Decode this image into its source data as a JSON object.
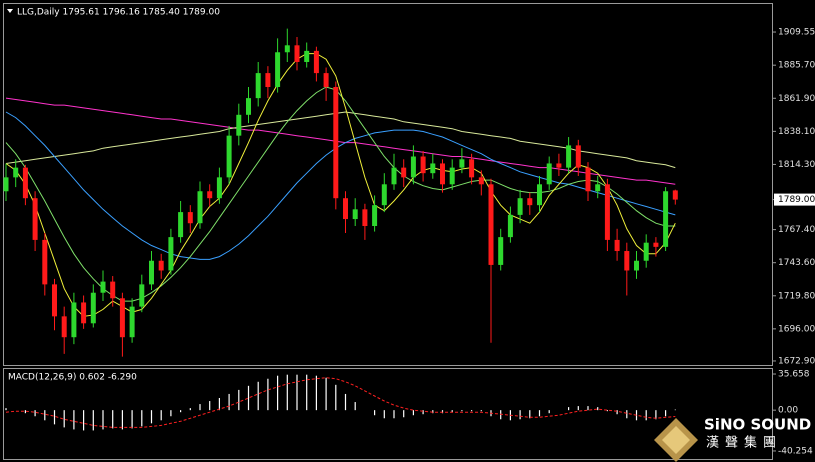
{
  "chart_data": [
    {
      "type": "candlestick",
      "title": "LLG,Daily 1795.61 1796.16 1785.40 1789.00",
      "open": [
        1795,
        1805,
        1812,
        1790,
        1760,
        1728,
        1705,
        1690,
        1715,
        1700,
        1722,
        1730,
        1718,
        1690,
        1712,
        1728,
        1745,
        1738,
        1762,
        1780,
        1772,
        1795,
        1790,
        1805,
        1835,
        1850,
        1862,
        1880,
        1870,
        1895,
        1900,
        1888,
        1896,
        1880,
        1870,
        1790,
        1775,
        1782,
        1770,
        1785,
        1800,
        1812,
        1805,
        1820,
        1808,
        1815,
        1800,
        1812,
        1818,
        1805,
        1800,
        1742,
        1762,
        1778,
        1790,
        1785,
        1800,
        1815,
        1812,
        1828,
        1812,
        1795,
        1800,
        1760,
        1752,
        1738,
        1745,
        1758,
        1755,
        1795.61
      ],
      "high": [
        1815,
        1818,
        1814,
        1795,
        1765,
        1732,
        1712,
        1722,
        1720,
        1728,
        1738,
        1734,
        1722,
        1718,
        1735,
        1752,
        1750,
        1768,
        1788,
        1785,
        1802,
        1800,
        1812,
        1842,
        1858,
        1870,
        1888,
        1885,
        1905,
        1912,
        1906,
        1902,
        1899,
        1884,
        1874,
        1795,
        1790,
        1786,
        1792,
        1808,
        1822,
        1818,
        1828,
        1824,
        1822,
        1818,
        1818,
        1826,
        1822,
        1810,
        1804,
        1768,
        1784,
        1796,
        1794,
        1806,
        1820,
        1822,
        1834,
        1832,
        1816,
        1806,
        1804,
        1768,
        1758,
        1752,
        1764,
        1762,
        1798,
        1796.16
      ],
      "low": [
        1788,
        1798,
        1785,
        1752,
        1720,
        1695,
        1678,
        1685,
        1696,
        1697,
        1716,
        1712,
        1676,
        1686,
        1708,
        1724,
        1732,
        1735,
        1758,
        1765,
        1768,
        1784,
        1786,
        1800,
        1828,
        1844,
        1856,
        1862,
        1866,
        1888,
        1882,
        1884,
        1874,
        1860,
        1782,
        1765,
        1770,
        1760,
        1766,
        1780,
        1796,
        1798,
        1800,
        1802,
        1804,
        1794,
        1796,
        1808,
        1800,
        1792,
        1686,
        1738,
        1758,
        1772,
        1778,
        1780,
        1796,
        1806,
        1808,
        1806,
        1788,
        1790,
        1752,
        1745,
        1720,
        1732,
        1740,
        1748,
        1752,
        1785.4
      ],
      "close": [
        1805,
        1812,
        1790,
        1760,
        1728,
        1705,
        1690,
        1715,
        1700,
        1722,
        1730,
        1718,
        1690,
        1712,
        1728,
        1745,
        1738,
        1762,
        1780,
        1772,
        1795,
        1790,
        1805,
        1835,
        1850,
        1862,
        1880,
        1870,
        1895,
        1900,
        1888,
        1896,
        1880,
        1870,
        1790,
        1775,
        1782,
        1770,
        1785,
        1800,
        1812,
        1805,
        1820,
        1808,
        1815,
        1800,
        1812,
        1818,
        1805,
        1800,
        1742,
        1762,
        1778,
        1790,
        1785,
        1800,
        1815,
        1812,
        1828,
        1812,
        1795,
        1800,
        1760,
        1752,
        1738,
        1745,
        1758,
        1755,
        1795,
        1789.0
      ],
      "up_color": "#2ed82e",
      "down_color": "#ff1a1a",
      "lines": [
        {
          "color": "#ff33cc",
          "values": [
            1862,
            1861,
            1860,
            1859,
            1858,
            1857,
            1857,
            1856,
            1855,
            1854,
            1853,
            1852,
            1851,
            1850,
            1849,
            1848,
            1847,
            1847,
            1846,
            1845,
            1844,
            1843,
            1842,
            1841,
            1840,
            1839,
            1839,
            1838,
            1837,
            1836,
            1835,
            1834,
            1833,
            1832,
            1831,
            1830,
            1830,
            1829,
            1828,
            1827,
            1826,
            1825,
            1824,
            1823,
            1822,
            1821,
            1820,
            1820,
            1819,
            1818,
            1817,
            1816,
            1815,
            1814,
            1813,
            1812,
            1812,
            1811,
            1810,
            1809,
            1808,
            1807,
            1806,
            1805,
            1804,
            1803,
            1803,
            1802,
            1801,
            1800
          ]
        },
        {
          "color": "#d8e89a",
          "values": [
            1815,
            1816,
            1817,
            1818,
            1819,
            1820,
            1821,
            1822,
            1823,
            1824,
            1826,
            1827,
            1828,
            1829,
            1830,
            1831,
            1832,
            1833,
            1834,
            1835,
            1836,
            1837,
            1838,
            1840,
            1841,
            1842,
            1843,
            1844,
            1845,
            1846,
            1847,
            1848,
            1849,
            1850,
            1851,
            1852,
            1851,
            1850,
            1849,
            1848,
            1847,
            1845,
            1844,
            1843,
            1842,
            1841,
            1840,
            1838,
            1837,
            1836,
            1835,
            1834,
            1833,
            1831,
            1830,
            1829,
            1828,
            1827,
            1826,
            1824,
            1823,
            1822,
            1821,
            1820,
            1819,
            1817,
            1816,
            1815,
            1814,
            1812
          ]
        },
        {
          "color": "#3aa0ff",
          "values": [
            1852,
            1848,
            1842,
            1835,
            1828,
            1820,
            1812,
            1804,
            1796,
            1789,
            1782,
            1776,
            1770,
            1765,
            1760,
            1756,
            1753,
            1750,
            1748,
            1747,
            1746,
            1746,
            1748,
            1752,
            1757,
            1763,
            1770,
            1777,
            1785,
            1793,
            1801,
            1808,
            1815,
            1821,
            1826,
            1830,
            1833,
            1835,
            1837,
            1838,
            1839,
            1839,
            1839,
            1838,
            1836,
            1834,
            1831,
            1828,
            1825,
            1822,
            1818,
            1815,
            1812,
            1809,
            1807,
            1805,
            1803,
            1801,
            1800,
            1798,
            1796,
            1794,
            1792,
            1790,
            1788,
            1786,
            1784,
            1782,
            1780,
            1778
          ]
        },
        {
          "color": "#7fe06a",
          "values": [
            1830,
            1822,
            1812,
            1800,
            1788,
            1775,
            1762,
            1750,
            1740,
            1732,
            1725,
            1720,
            1716,
            1716,
            1718,
            1722,
            1727,
            1733,
            1740,
            1748,
            1757,
            1766,
            1776,
            1786,
            1796,
            1806,
            1816,
            1826,
            1836,
            1845,
            1853,
            1860,
            1866,
            1870,
            1868,
            1860,
            1850,
            1840,
            1830,
            1820,
            1812,
            1806,
            1802,
            1799,
            1797,
            1796,
            1798,
            1800,
            1802,
            1803,
            1803,
            1800,
            1797,
            1795,
            1794,
            1794,
            1795,
            1797,
            1800,
            1802,
            1803,
            1802,
            1798,
            1793,
            1787,
            1781,
            1776,
            1772,
            1770,
            1770
          ]
        },
        {
          "color": "#f0f03a",
          "values": [
            1815,
            1810,
            1800,
            1785,
            1765,
            1745,
            1725,
            1712,
            1705,
            1706,
            1710,
            1716,
            1712,
            1708,
            1710,
            1718,
            1728,
            1738,
            1752,
            1763,
            1775,
            1784,
            1790,
            1800,
            1815,
            1830,
            1846,
            1860,
            1872,
            1882,
            1890,
            1894,
            1894,
            1890,
            1878,
            1855,
            1830,
            1805,
            1785,
            1781,
            1788,
            1796,
            1805,
            1810,
            1812,
            1810,
            1809,
            1811,
            1812,
            1808,
            1795,
            1785,
            1778,
            1775,
            1772,
            1780,
            1792,
            1800,
            1808,
            1814,
            1812,
            1808,
            1798,
            1785,
            1768,
            1756,
            1750,
            1750,
            1758,
            1772
          ]
        }
      ],
      "ylim": [
        1670,
        1929
      ],
      "yticks": [
        1909.55,
        {
          "value": 1885.7,
          "label": "1885.70"
        },
        {
          "value": 1861.9,
          "label": "1861.90"
        },
        {
          "value": 1838.1,
          "label": "1838.10"
        },
        {
          "value": 1814.3,
          "label": "1814.30"
        },
        {
          "value": 1789,
          "label": "1789.00"
        },
        {
          "value": 1767.4,
          "label": "1767.40"
        },
        {
          "value": 1743.6,
          "label": "1743.60"
        },
        {
          "value": 1719.8,
          "label": "1719.80"
        },
        {
          "value": 1696,
          "label": "1696.00"
        },
        {
          "value": 1672.9,
          "label": "1672.90"
        }
      ]
    },
    {
      "type": "macd",
      "title": "MACD(12,26,9) 0.602 -6.290",
      "values": [
        2,
        0,
        -3,
        -6,
        -10,
        -14,
        -17,
        -19,
        -20,
        -20,
        -19,
        -18,
        -19,
        -18,
        -16,
        -13,
        -10,
        -6,
        -2,
        2,
        6,
        9,
        12,
        16,
        20,
        24,
        28,
        31,
        34,
        35,
        35,
        35,
        34,
        32,
        25,
        16,
        8,
        0,
        -5,
        -8,
        -8,
        -7,
        -5,
        -4,
        -3,
        -3,
        -2,
        -1,
        -1,
        -1,
        -6,
        -9,
        -10,
        -9,
        -8,
        -6,
        -3,
        0,
        3,
        4,
        4,
        3,
        -1,
        -4,
        -8,
        -10,
        -10,
        -9,
        -6,
        0.602
      ],
      "signal": [
        -2,
        -1,
        -1,
        -2,
        -4,
        -6,
        -9,
        -11,
        -13,
        -15,
        -16,
        -17,
        -17,
        -17,
        -17,
        -16,
        -15,
        -13,
        -11,
        -8,
        -5,
        -2,
        1,
        4,
        8,
        12,
        16,
        20,
        23,
        26,
        28,
        30,
        31,
        32,
        31,
        28,
        24,
        19,
        14,
        9,
        5,
        2,
        0,
        -1,
        -2,
        -2,
        -2,
        -2,
        -2,
        -2,
        -3,
        -4,
        -5,
        -6,
        -7,
        -7,
        -6,
        -5,
        -3,
        -1,
        0,
        1,
        0,
        -1,
        -3,
        -5,
        -7,
        -8,
        -7,
        -6.29
      ],
      "color": "#ffffff",
      "signal_color": "#ff2020",
      "ylim": [
        -47.2,
        41.6
      ],
      "yticks": [
        35.658,
        {
          "value": 0,
          "label": "0.00"
        },
        -40.254
      ]
    }
  ],
  "logo": {
    "name": "SiNO SOUND",
    "subtitle": "漢聲集團"
  }
}
